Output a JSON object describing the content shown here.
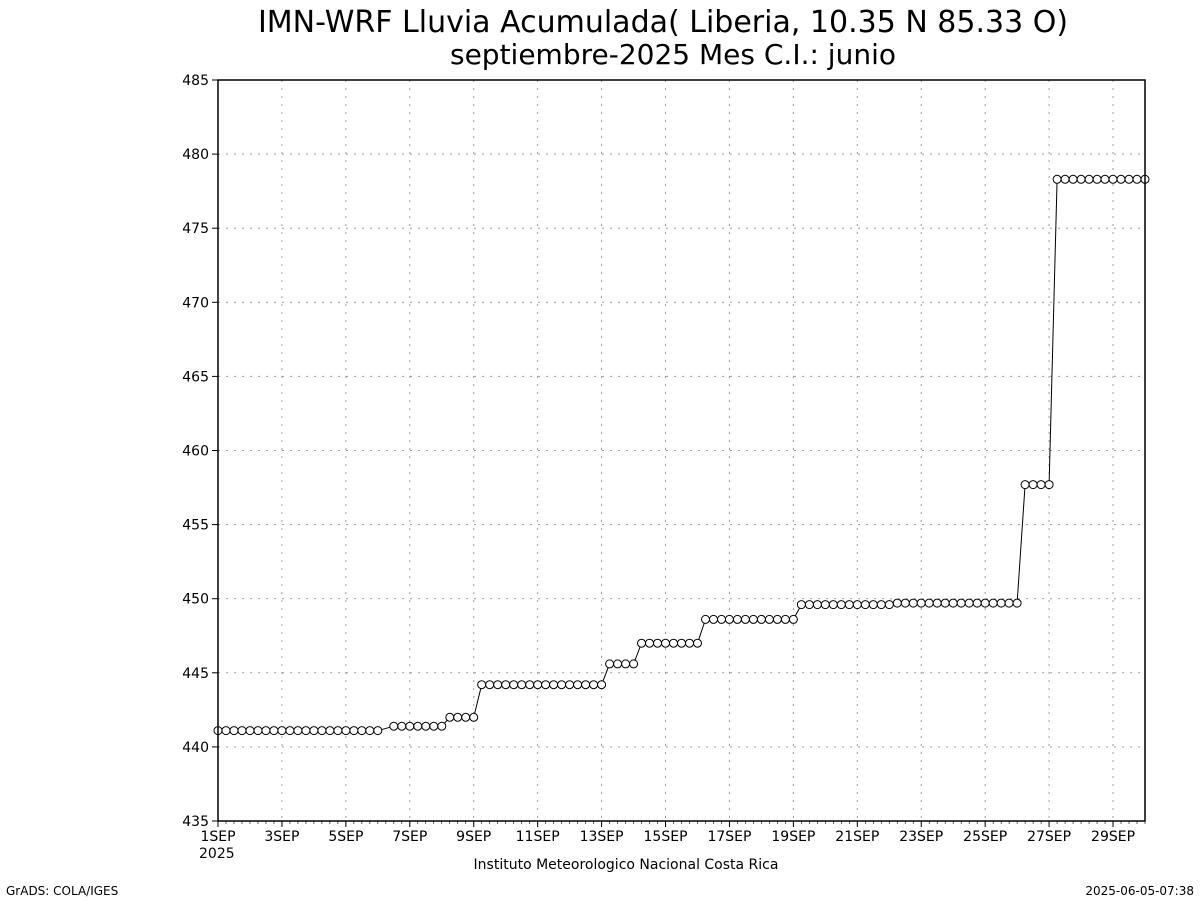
{
  "chart_data": {
    "type": "line",
    "title": "IMN-WRF  Lluvia Acumulada( Liberia, 10.35  N 85.33  O)",
    "subtitle": "septiembre-2025 Mes C.I.: junio",
    "xlabel": "",
    "ylabel": "",
    "ylim": [
      435,
      485
    ],
    "xlim": [
      1,
      30
    ],
    "y_ticks": [
      435,
      440,
      445,
      450,
      455,
      460,
      465,
      470,
      475,
      480,
      485
    ],
    "x_ticks": [
      {
        "day": 1,
        "label": "1SEP"
      },
      {
        "day": 3,
        "label": "3SEP"
      },
      {
        "day": 5,
        "label": "5SEP"
      },
      {
        "day": 7,
        "label": "7SEP"
      },
      {
        "day": 9,
        "label": "9SEP"
      },
      {
        "day": 11,
        "label": "11SEP"
      },
      {
        "day": 13,
        "label": "13SEP"
      },
      {
        "day": 15,
        "label": "15SEP"
      },
      {
        "day": 17,
        "label": "17SEP"
      },
      {
        "day": 19,
        "label": "19SEP"
      },
      {
        "day": 21,
        "label": "21SEP"
      },
      {
        "day": 23,
        "label": "23SEP"
      },
      {
        "day": 25,
        "label": "25SEP"
      },
      {
        "day": 27,
        "label": "27SEP"
      },
      {
        "day": 29,
        "label": "29SEP"
      }
    ],
    "year_label": "2025",
    "grid": true,
    "series": [
      {
        "steps": [
          {
            "from": 1.0,
            "to": 6.0,
            "value": 441.1
          },
          {
            "from": 6.5,
            "to": 8.0,
            "value": 441.4
          },
          {
            "from": 8.25,
            "to": 9.0,
            "value": 442.0
          },
          {
            "from": 9.25,
            "to": 13.0,
            "value": 444.2
          },
          {
            "from": 13.25,
            "to": 14.0,
            "value": 445.6
          },
          {
            "from": 14.25,
            "to": 16.0,
            "value": 447.0
          },
          {
            "from": 16.25,
            "to": 19.0,
            "value": 448.6
          },
          {
            "from": 19.25,
            "to": 22.0,
            "value": 449.6
          },
          {
            "from": 22.25,
            "to": 26.0,
            "value": 449.7
          },
          {
            "from": 26.25,
            "to": 27.0,
            "value": 457.7
          },
          {
            "from": 27.25,
            "to": 30.0,
            "value": 478.3
          }
        ]
      }
    ]
  },
  "footer": {
    "institution": "Instituto Meteorologico Nacional Costa Rica",
    "software": "GrADS: COLA/IGES",
    "timestamp": "2025-06-05-07:38"
  }
}
